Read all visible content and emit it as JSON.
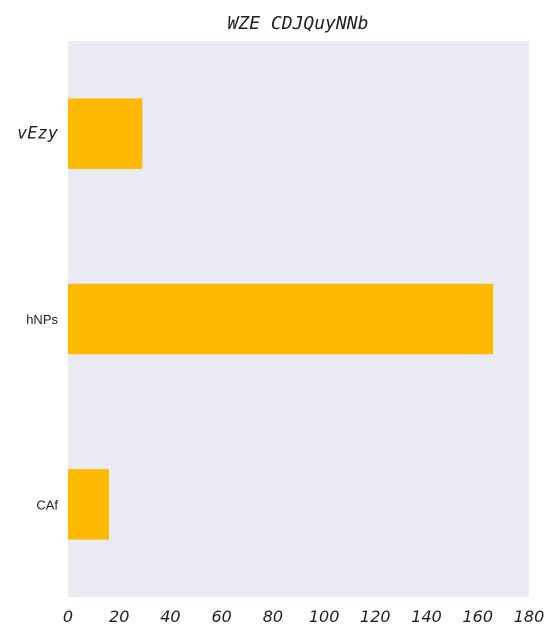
{
  "chart_data": {
    "type": "bar",
    "orientation": "horizontal",
    "title": "WZE CDJQuyNNb",
    "xlabel": "",
    "ylabel": "",
    "categories": [
      "vEzy",
      "hNPs",
      "CAf"
    ],
    "values": [
      29,
      166,
      16
    ],
    "xlim": [
      0,
      180
    ],
    "xticks": [
      0,
      20,
      40,
      60,
      80,
      100,
      120,
      140,
      160,
      180
    ],
    "grid": false,
    "legend": "none",
    "bar_color": "#FFB900",
    "plot_background": "#EAEAF2"
  }
}
